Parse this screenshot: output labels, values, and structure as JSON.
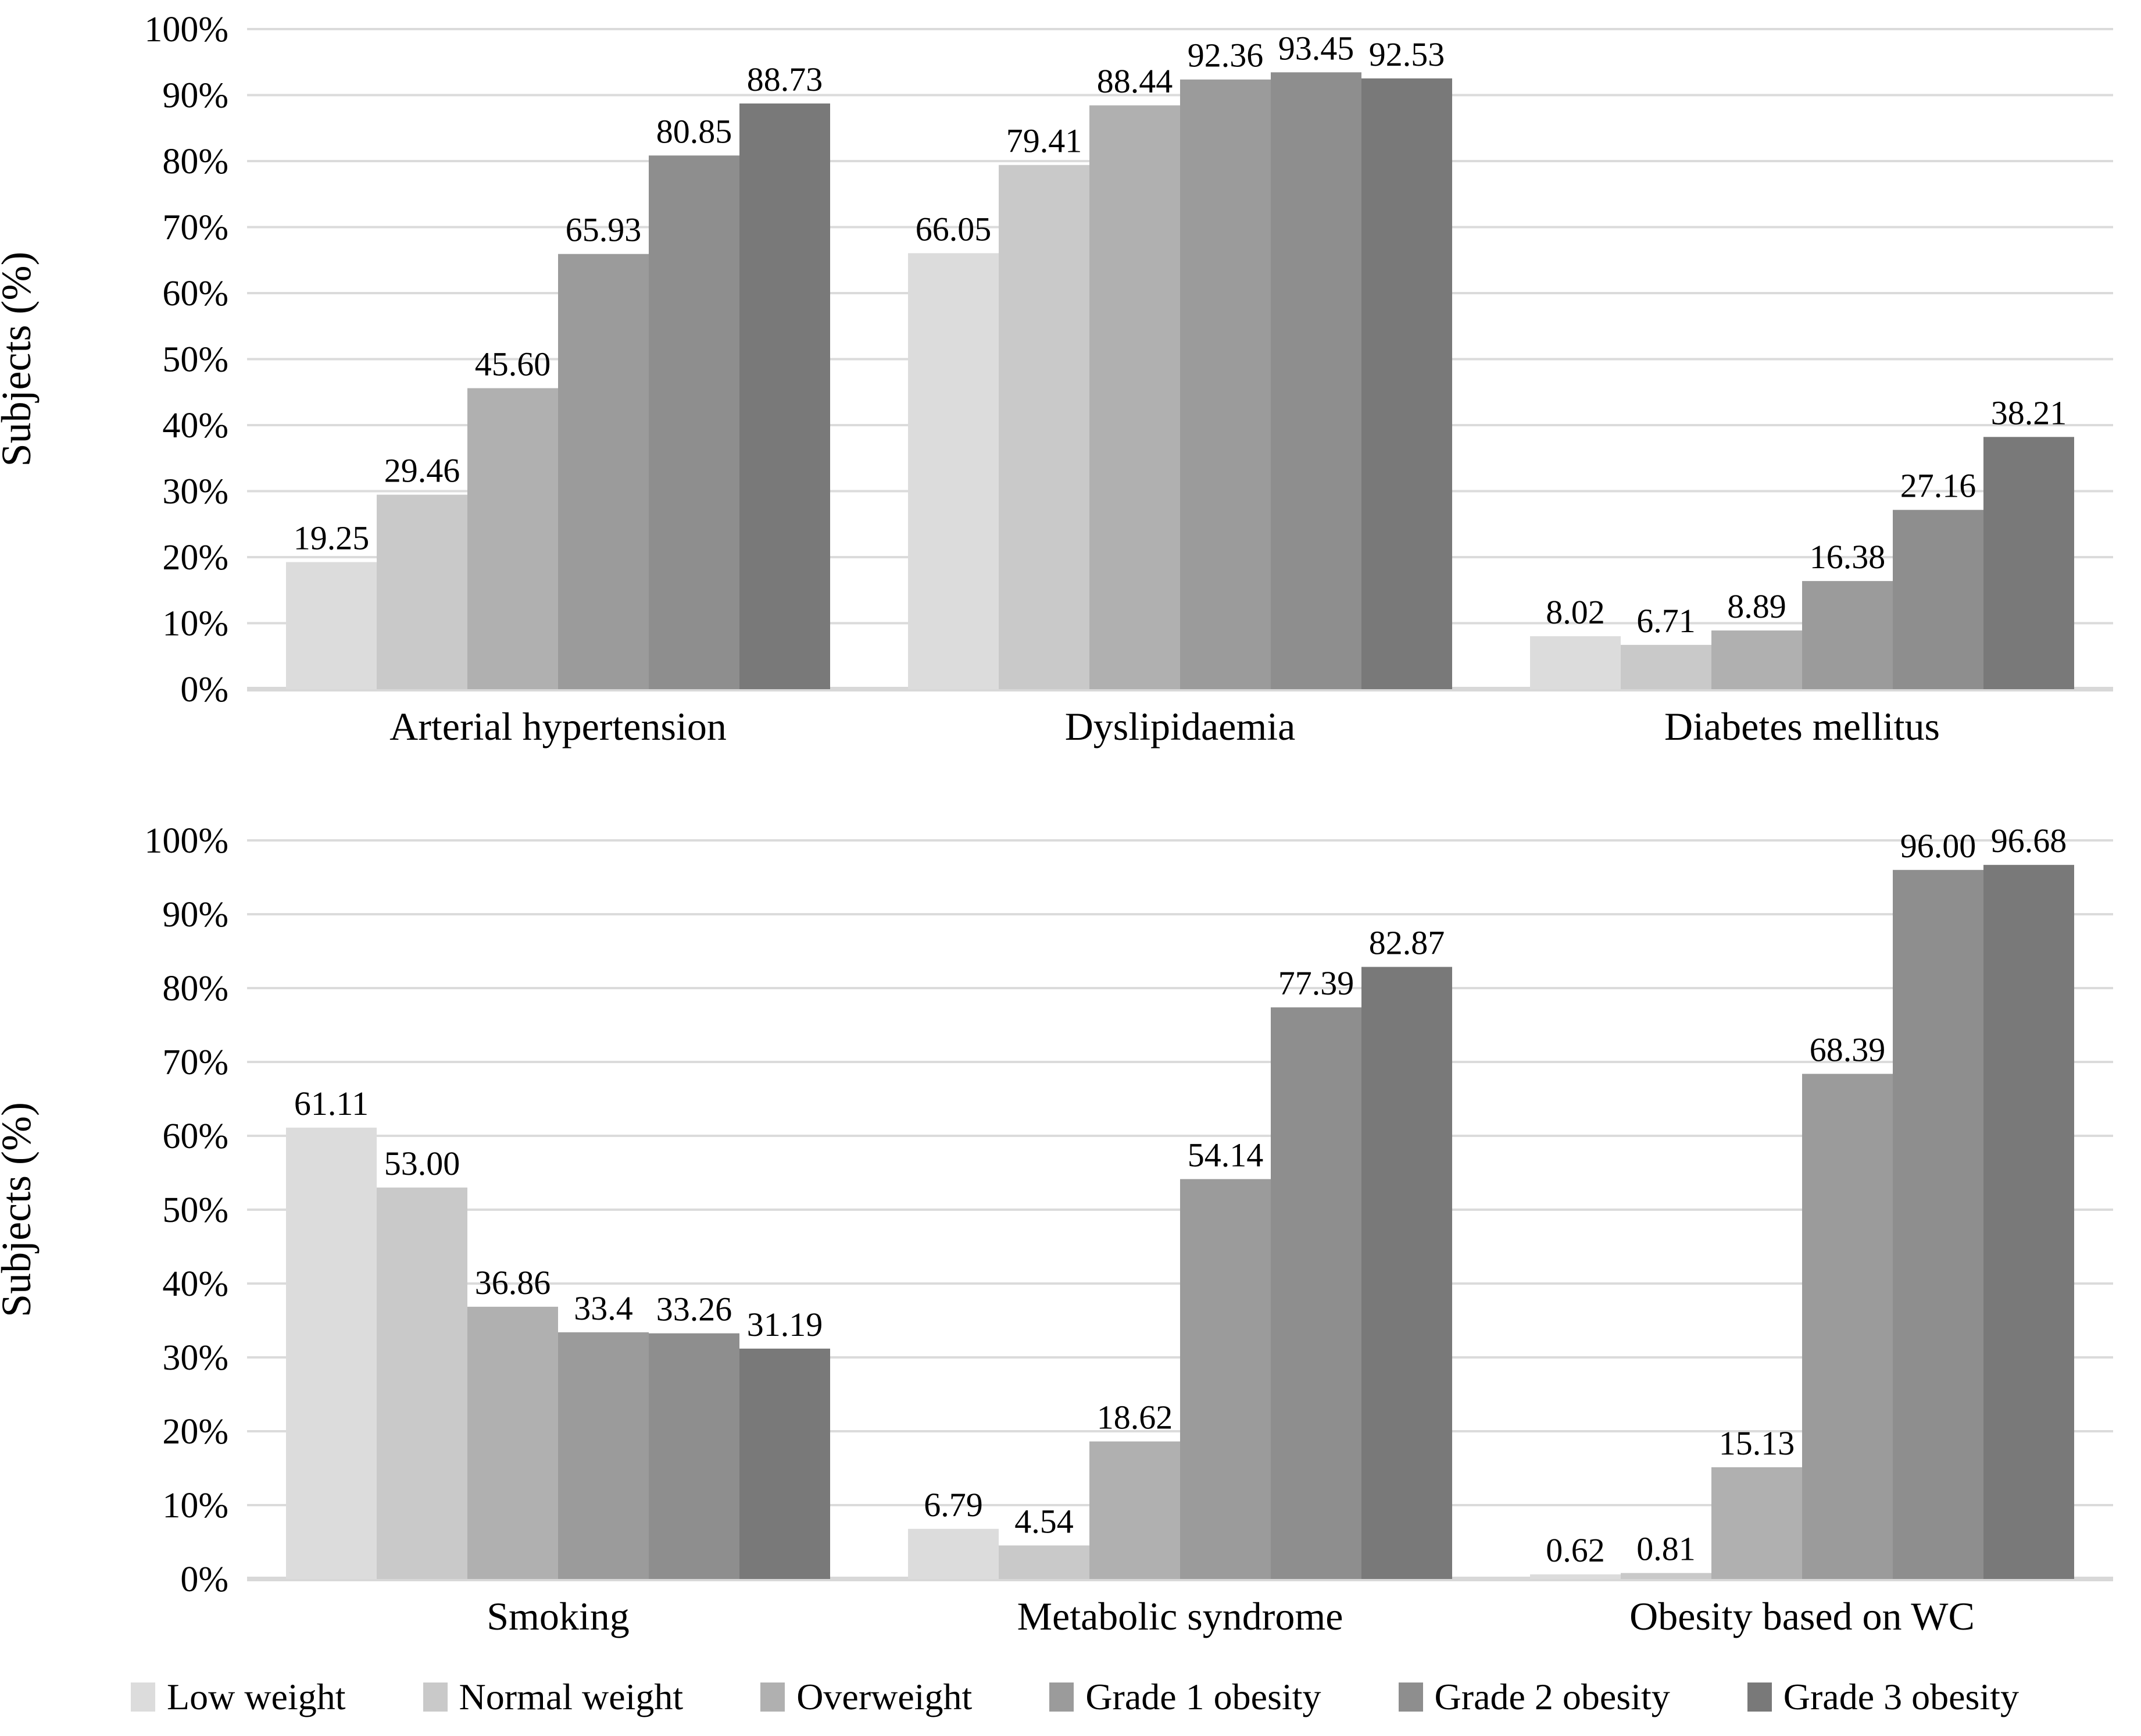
{
  "figure": {
    "y_axis_title": "Subjects (%)",
    "background": "#ffffff",
    "grid_color": "#dbdbdb",
    "baseline_color": "#d8d8d8",
    "text_color": "#000000"
  },
  "palette": [
    "#dcdcdc",
    "#c9c9c9",
    "#b0b0b0",
    "#9b9b9b",
    "#8e8e8e",
    "#797979"
  ],
  "legend": {
    "position": "bottom",
    "entries": [
      "Low weight",
      "Normal weight",
      "Overweight",
      "Grade 1 obesity",
      "Grade 2 obesity",
      "Grade 3 obesity"
    ]
  },
  "chart_data": [
    {
      "type": "bar",
      "panel": "top",
      "title": "",
      "xlabel": "",
      "ylabel": "Subjects (%)",
      "ylim": [
        0,
        100
      ],
      "ytick_step": 10,
      "ytick_suffix": "%",
      "grid": true,
      "categories": [
        "Arterial hypertension",
        "Dyslipidaemia",
        "Diabetes mellitus"
      ],
      "series": [
        {
          "name": "Low weight",
          "values": [
            19.25,
            66.05,
            8.02
          ],
          "labels": [
            "19.25",
            "66.05",
            "8.02"
          ]
        },
        {
          "name": "Normal weight",
          "values": [
            29.46,
            79.41,
            6.71
          ],
          "labels": [
            "29.46",
            "79.41",
            "6.71"
          ]
        },
        {
          "name": "Overweight",
          "values": [
            45.6,
            88.44,
            8.89
          ],
          "labels": [
            "45.60",
            "88.44",
            "8.89"
          ]
        },
        {
          "name": "Grade 1 obesity",
          "values": [
            65.93,
            92.36,
            16.38
          ],
          "labels": [
            "65.93",
            "92.36",
            "16.38"
          ]
        },
        {
          "name": "Grade 2 obesity",
          "values": [
            80.85,
            93.45,
            27.16
          ],
          "labels": [
            "80.85",
            "93.45",
            "27.16"
          ]
        },
        {
          "name": "Grade 3 obesity",
          "values": [
            88.73,
            92.53,
            38.21
          ],
          "labels": [
            "88.73",
            "92.53",
            "38.21"
          ]
        }
      ]
    },
    {
      "type": "bar",
      "panel": "bottom",
      "title": "",
      "xlabel": "",
      "ylabel": "Subjects (%)",
      "ylim": [
        0,
        100
      ],
      "ytick_step": 10,
      "ytick_suffix": "%",
      "grid": true,
      "categories": [
        "Smoking",
        "Metabolic syndrome",
        "Obesity based on WC"
      ],
      "series": [
        {
          "name": "Low weight",
          "values": [
            61.11,
            6.79,
            0.62
          ],
          "labels": [
            "61.11",
            "6.79",
            "0.62"
          ]
        },
        {
          "name": "Normal weight",
          "values": [
            53.0,
            4.54,
            0.81
          ],
          "labels": [
            "53.00",
            "4.54",
            "0.81"
          ]
        },
        {
          "name": "Overweight",
          "values": [
            36.86,
            18.62,
            15.13
          ],
          "labels": [
            "36.86",
            "18.62",
            "15.13"
          ]
        },
        {
          "name": "Grade 1 obesity",
          "values": [
            33.4,
            54.14,
            68.39
          ],
          "labels": [
            "33.4",
            "54.14",
            "68.39"
          ]
        },
        {
          "name": "Grade 2 obesity",
          "values": [
            33.26,
            77.39,
            96.0
          ],
          "labels": [
            "33.26",
            "77.39",
            "96.00"
          ]
        },
        {
          "name": "Grade 3 obesity",
          "values": [
            31.19,
            82.87,
            96.68
          ],
          "labels": [
            "31.19",
            "82.87",
            "96.68"
          ]
        }
      ]
    }
  ]
}
